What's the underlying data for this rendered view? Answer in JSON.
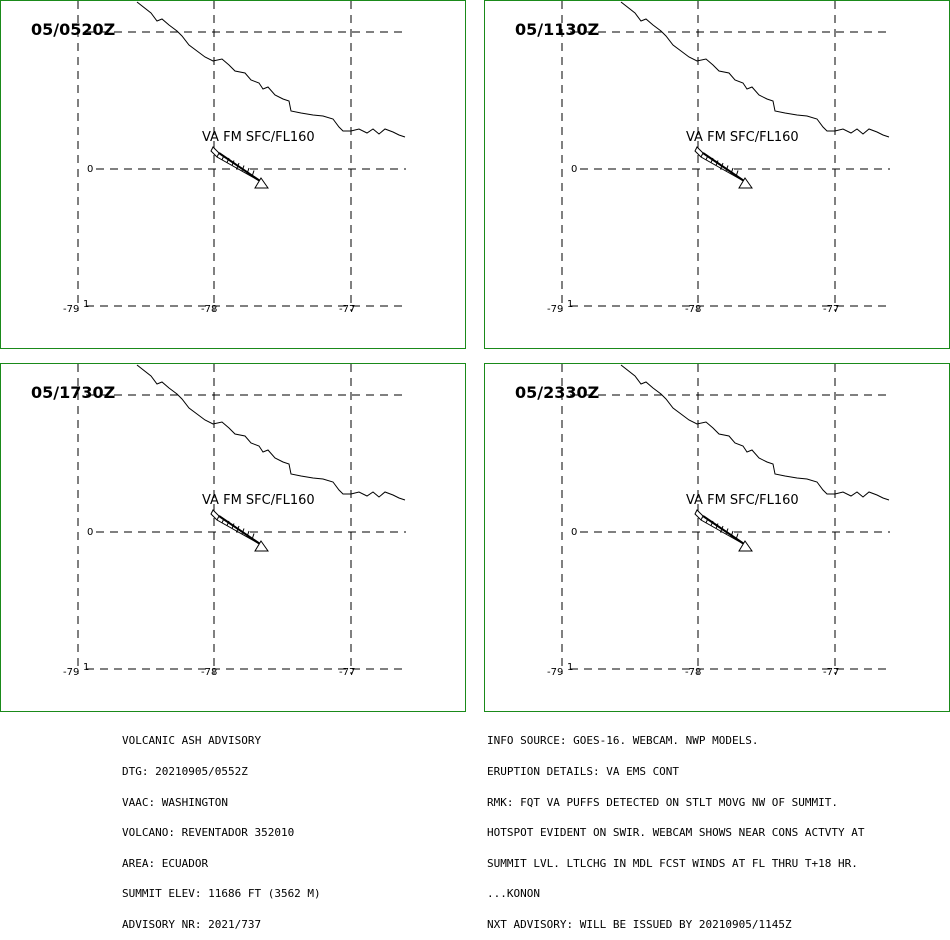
{
  "panels": [
    {
      "time": "05/0520Z",
      "label": "VA FM SFC/FL160"
    },
    {
      "time": "05/1130Z",
      "label": "VA FM SFC/FL160"
    },
    {
      "time": "05/1730Z",
      "label": "VA FM SFC/FL160"
    },
    {
      "time": "05/2330Z",
      "label": "VA FM SFC/FL160"
    }
  ],
  "axes": {
    "lat_label": "0",
    "lon_labels": [
      "-79",
      "-78",
      "-77"
    ],
    "south_label": "1"
  },
  "advisory_left": [
    "VOLCANIC ASH ADVISORY",
    "DTG: 20210905/0552Z",
    "VAAC: WASHINGTON",
    "VOLCANO: REVENTADOR 352010",
    "AREA: ECUADOR",
    "SUMMIT ELEV: 11686 FT (3562 M)",
    "ADVISORY NR: 2021/737"
  ],
  "advisory_right": [
    "INFO SOURCE: GOES-16. WEBCAM. NWP MODELS.",
    "ERUPTION DETAILS: VA EMS CONT",
    "RMK: FQT VA PUFFS DETECTED ON STLT MOVG NW OF SUMMIT.",
    "HOTSPOT EVIDENT ON SWIR. WEBCAM SHOWS NEAR CONS ACTVTY AT",
    "SUMMIT LVL. LTLCHG IN MDL FCST WINDS AT FL THRU T+18 HR.",
    "...KONON",
    "NXT ADVISORY: WILL BE ISSUED BY 20210905/1145Z"
  ],
  "colors": {
    "border": "#1a8a1a"
  }
}
